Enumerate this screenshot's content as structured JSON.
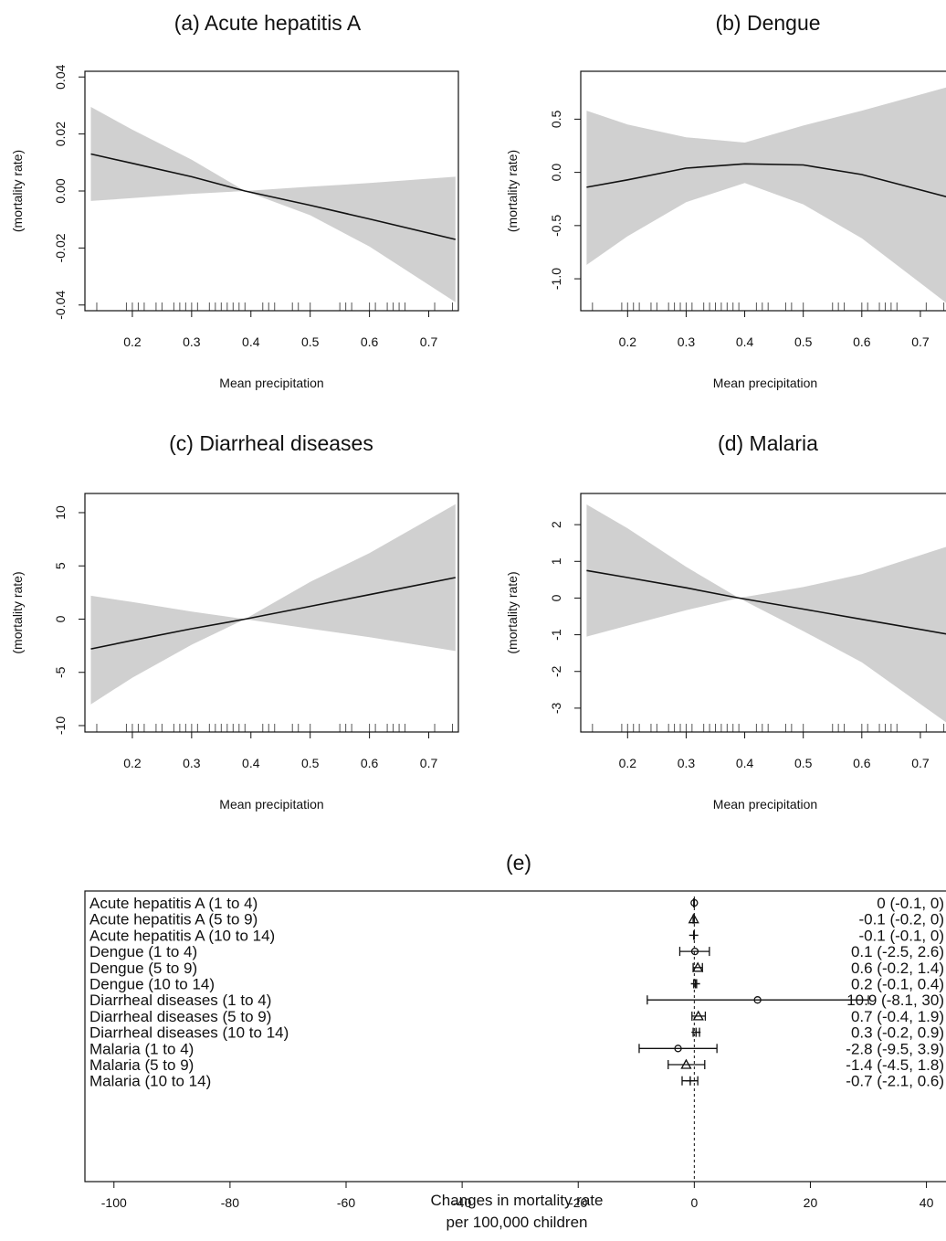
{
  "chart_data": [
    {
      "type": "line",
      "title": "(a) Acute hepatitis A",
      "xlabel": "Mean precipitation",
      "ylabel": "(mortality rate)",
      "xlim": [
        0.12,
        0.75
      ],
      "ylim": [
        -0.042,
        0.042
      ],
      "xticks": [
        0.2,
        0.3,
        0.4,
        0.5,
        0.6,
        0.7
      ],
      "yticks": [
        -0.04,
        -0.02,
        0.0,
        0.02,
        0.04
      ],
      "ytick_labels": [
        "-0.04",
        "-0.02",
        "0.00",
        "0.02",
        "0.04"
      ],
      "x": [
        0.13,
        0.2,
        0.3,
        0.39,
        0.5,
        0.6,
        0.745
      ],
      "y": [
        0.013,
        0.0097,
        0.005,
        0.0,
        -0.005,
        -0.0098,
        -0.017
      ],
      "lower": [
        -0.0035,
        -0.0025,
        -0.001,
        0.0,
        -0.0085,
        -0.0195,
        -0.039
      ],
      "upper": [
        0.0295,
        0.0215,
        0.011,
        0.0,
        0.0015,
        0.0028,
        0.005
      ],
      "rug": [
        0.14,
        0.19,
        0.2,
        0.21,
        0.22,
        0.24,
        0.25,
        0.27,
        0.28,
        0.29,
        0.3,
        0.31,
        0.33,
        0.34,
        0.35,
        0.36,
        0.37,
        0.38,
        0.39,
        0.42,
        0.43,
        0.44,
        0.47,
        0.48,
        0.5,
        0.55,
        0.56,
        0.57,
        0.6,
        0.61,
        0.63,
        0.64,
        0.65,
        0.66,
        0.71,
        0.74
      ]
    },
    {
      "type": "line",
      "title": "(b) Dengue",
      "xlabel": "Mean precipitation",
      "ylabel": "(mortality rate)",
      "xlim": [
        0.12,
        0.75
      ],
      "ylim": [
        -1.3,
        0.95
      ],
      "xticks": [
        0.2,
        0.3,
        0.4,
        0.5,
        0.6,
        0.7
      ],
      "yticks": [
        -1.0,
        -0.5,
        0.0,
        0.5
      ],
      "ytick_labels": [
        "-1.0",
        "-0.5",
        "0.0",
        "0.5"
      ],
      "x": [
        0.13,
        0.2,
        0.3,
        0.4,
        0.5,
        0.6,
        0.745
      ],
      "y": [
        -0.14,
        -0.07,
        0.04,
        0.08,
        0.07,
        -0.02,
        -0.23
      ],
      "lower": [
        -0.87,
        -0.6,
        -0.28,
        -0.1,
        -0.3,
        -0.62,
        -1.23
      ],
      "upper": [
        0.58,
        0.45,
        0.33,
        0.28,
        0.44,
        0.58,
        0.8
      ],
      "rug": [
        0.14,
        0.19,
        0.2,
        0.21,
        0.22,
        0.24,
        0.25,
        0.27,
        0.28,
        0.29,
        0.3,
        0.31,
        0.33,
        0.34,
        0.35,
        0.36,
        0.37,
        0.38,
        0.39,
        0.42,
        0.43,
        0.44,
        0.47,
        0.48,
        0.5,
        0.55,
        0.56,
        0.57,
        0.6,
        0.61,
        0.63,
        0.64,
        0.65,
        0.66,
        0.71,
        0.74
      ]
    },
    {
      "type": "line",
      "title": "(c) Diarrheal diseases",
      "xlabel": "Mean precipitation",
      "ylabel": "(mortality rate)",
      "xlim": [
        0.12,
        0.75
      ],
      "ylim": [
        -10.6,
        11.8
      ],
      "xticks": [
        0.2,
        0.3,
        0.4,
        0.5,
        0.6,
        0.7
      ],
      "yticks": [
        -10,
        -5,
        0,
        5,
        10
      ],
      "ytick_labels": [
        "-10",
        "-5",
        "0",
        "5",
        "10"
      ],
      "x": [
        0.13,
        0.2,
        0.3,
        0.39,
        0.5,
        0.6,
        0.745
      ],
      "y": [
        -2.8,
        -2.0,
        -0.9,
        0.0,
        1.2,
        2.3,
        3.9
      ],
      "lower": [
        -8.0,
        -5.5,
        -2.4,
        0.0,
        -0.9,
        -1.7,
        -3.0
      ],
      "upper": [
        2.2,
        1.6,
        0.7,
        0.0,
        3.5,
        6.2,
        10.8
      ],
      "rug": [
        0.14,
        0.19,
        0.2,
        0.21,
        0.22,
        0.24,
        0.25,
        0.27,
        0.28,
        0.29,
        0.3,
        0.31,
        0.33,
        0.34,
        0.35,
        0.36,
        0.37,
        0.38,
        0.39,
        0.42,
        0.43,
        0.44,
        0.47,
        0.48,
        0.5,
        0.55,
        0.56,
        0.57,
        0.6,
        0.61,
        0.63,
        0.64,
        0.65,
        0.66,
        0.71,
        0.74
      ]
    },
    {
      "type": "line",
      "title": "(d) Malaria",
      "xlabel": "Mean precipitation",
      "ylabel": "(mortality rate)",
      "xlim": [
        0.12,
        0.75
      ],
      "ylim": [
        -3.65,
        2.85
      ],
      "xticks": [
        0.2,
        0.3,
        0.4,
        0.5,
        0.6,
        0.7
      ],
      "yticks": [
        -3,
        -2,
        -1,
        0,
        1,
        2
      ],
      "ytick_labels": [
        "-3",
        "-2",
        "-1",
        "0",
        "1",
        "2"
      ],
      "x": [
        0.13,
        0.2,
        0.3,
        0.39,
        0.5,
        0.6,
        0.745
      ],
      "y": [
        0.75,
        0.56,
        0.28,
        0.0,
        -0.3,
        -0.58,
        -0.98
      ],
      "lower": [
        -1.05,
        -0.75,
        -0.33,
        0.0,
        -0.9,
        -1.75,
        -3.4
      ],
      "upper": [
        2.55,
        1.9,
        0.85,
        0.0,
        0.3,
        0.65,
        1.4
      ],
      "rug": [
        0.14,
        0.19,
        0.2,
        0.21,
        0.22,
        0.24,
        0.25,
        0.27,
        0.28,
        0.29,
        0.3,
        0.31,
        0.33,
        0.34,
        0.35,
        0.36,
        0.37,
        0.38,
        0.39,
        0.42,
        0.43,
        0.44,
        0.47,
        0.48,
        0.5,
        0.55,
        0.56,
        0.57,
        0.6,
        0.61,
        0.63,
        0.64,
        0.65,
        0.66,
        0.71,
        0.74
      ]
    },
    {
      "type": "forest",
      "title": "(e)",
      "xlabel": [
        "Changes in mortality rate",
        "per 100,000 children"
      ],
      "xlim": [
        -105,
        44
      ],
      "xticks": [
        -100,
        -80,
        -60,
        -40,
        -20,
        0,
        20,
        40
      ],
      "reference_line": 0,
      "rows": [
        {
          "label": "Acute hepatitis A (1 to 4)",
          "estimate": 0,
          "lower": -0.1,
          "upper": 0,
          "text": "0 (-0.1, 0)",
          "marker": "circle"
        },
        {
          "label": "Acute hepatitis A (5 to 9)",
          "estimate": -0.1,
          "lower": -0.2,
          "upper": 0,
          "text": "-0.1 (-0.2, 0)",
          "marker": "triangle"
        },
        {
          "label": "Acute hepatitis A (10 to 14)",
          "estimate": -0.1,
          "lower": -0.1,
          "upper": 0,
          "text": "-0.1 (-0.1, 0)",
          "marker": "plus"
        },
        {
          "label": "Dengue (1 to 4)",
          "estimate": 0.1,
          "lower": -2.5,
          "upper": 2.6,
          "text": "0.1 (-2.5, 2.6)",
          "marker": "circle"
        },
        {
          "label": "Dengue (5 to 9)",
          "estimate": 0.6,
          "lower": -0.2,
          "upper": 1.4,
          "text": "0.6 (-0.2, 1.4)",
          "marker": "triangle"
        },
        {
          "label": "Dengue (10 to 14)",
          "estimate": 0.2,
          "lower": -0.1,
          "upper": 0.4,
          "text": "0.2 (-0.1, 0.4)",
          "marker": "plus"
        },
        {
          "label": "Diarrheal diseases (1 to 4)",
          "estimate": 10.9,
          "lower": -8.1,
          "upper": 30,
          "text": "10.9 (-8.1, 30)",
          "marker": "circle"
        },
        {
          "label": "Diarrheal diseases (5 to 9)",
          "estimate": 0.7,
          "lower": -0.4,
          "upper": 1.9,
          "text": "0.7 (-0.4, 1.9)",
          "marker": "triangle"
        },
        {
          "label": "Diarrheal diseases (10 to 14)",
          "estimate": 0.3,
          "lower": -0.2,
          "upper": 0.9,
          "text": "0.3 (-0.2, 0.9)",
          "marker": "plus"
        },
        {
          "label": "Malaria (1 to 4)",
          "estimate": -2.8,
          "lower": -9.5,
          "upper": 3.9,
          "text": "-2.8 (-9.5, 3.9)",
          "marker": "circle"
        },
        {
          "label": "Malaria (5 to 9)",
          "estimate": -1.4,
          "lower": -4.5,
          "upper": 1.8,
          "text": "-1.4 (-4.5, 1.8)",
          "marker": "triangle"
        },
        {
          "label": "Malaria (10 to 14)",
          "estimate": -0.7,
          "lower": -2.1,
          "upper": 0.6,
          "text": "-0.7 (-2.1, 0.6)",
          "marker": "plus"
        }
      ]
    }
  ]
}
